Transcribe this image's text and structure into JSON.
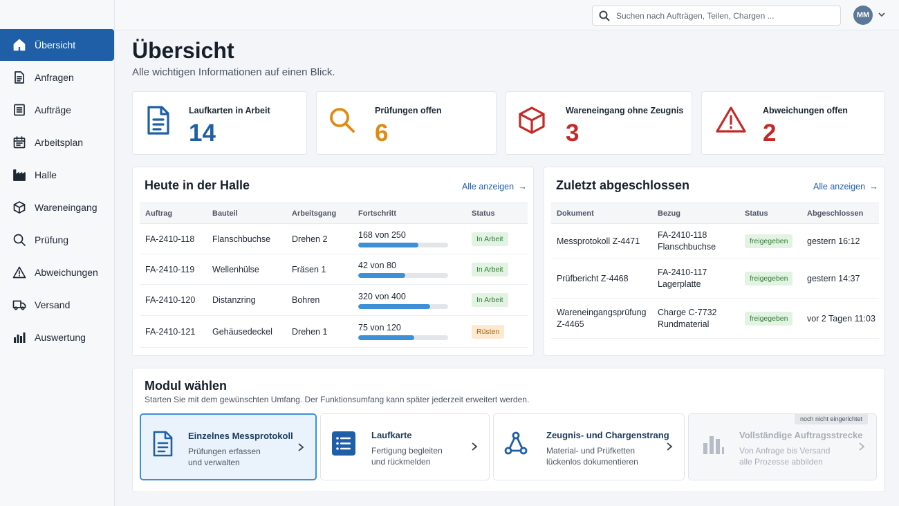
{
  "search": {
    "placeholder": "Suchen nach Aufträgen, Teilen, Chargen ..."
  },
  "user": {
    "initials": "MM"
  },
  "sidebar": {
    "items": [
      {
        "label": "Übersicht",
        "icon": "home-icon"
      },
      {
        "label": "Anfragen",
        "icon": "document-icon"
      },
      {
        "label": "Aufträge",
        "icon": "list-icon"
      },
      {
        "label": "Arbeitsplan",
        "icon": "calendar-icon"
      },
      {
        "label": "Halle",
        "icon": "factory-icon"
      },
      {
        "label": "Wareneingang",
        "icon": "box-icon"
      },
      {
        "label": "Prüfung",
        "icon": "search-icon"
      },
      {
        "label": "Abweichungen",
        "icon": "warning-icon"
      },
      {
        "label": "Versand",
        "icon": "truck-icon"
      },
      {
        "label": "Auswertung",
        "icon": "bar-chart-icon"
      }
    ]
  },
  "header": {
    "title": "Übersicht",
    "subtitle": "Alle wichtigen Informationen auf einen Blick."
  },
  "kpis": [
    {
      "label": "Laufkarten in Arbeit",
      "value": "14",
      "icon": "document-icon",
      "color": "#1e5fa8"
    },
    {
      "label": "Prüfungen offen",
      "value": "6",
      "icon": "search-icon",
      "color": "#e08a12"
    },
    {
      "label": "Wareneingang ohne Zeugnis",
      "value": "3",
      "icon": "box-icon",
      "color": "#c62828"
    },
    {
      "label": "Abweichungen offen",
      "value": "2",
      "icon": "warning-icon",
      "color": "#c62828"
    }
  ],
  "halle": {
    "title": "Heute in der Halle",
    "link": "Alle anzeigen",
    "columns": [
      "Auftrag",
      "Bauteil",
      "Arbeitsgang",
      "Fortschritt",
      "Status"
    ],
    "rows": [
      {
        "auftrag": "FA-2410-118",
        "bauteil": "Flanschbuchse",
        "arbeitsgang": "Drehen 2",
        "progress_text": "168 von 250",
        "progress": 0.672,
        "status": "In Arbeit"
      },
      {
        "auftrag": "FA-2410-119",
        "bauteil": "Wellenhülse",
        "arbeitsgang": "Fräsen 1",
        "progress_text": "42 von 80",
        "progress": 0.525,
        "status": "In Arbeit"
      },
      {
        "auftrag": "FA-2410-120",
        "bauteil": "Distanzring",
        "arbeitsgang": "Bohren",
        "progress_text": "320 von 400",
        "progress": 0.8,
        "status": "In Arbeit"
      },
      {
        "auftrag": "FA-2410-121",
        "bauteil": "Gehäusedeckel",
        "arbeitsgang": "Drehen 1",
        "progress_text": "75 von 120",
        "progress": 0.625,
        "status": "Rüsten"
      }
    ]
  },
  "done": {
    "title": "Zuletzt abgeschlossen",
    "link": "Alle anzeigen",
    "columns": [
      "Dokument",
      "Bezug",
      "Status",
      "Abgeschlossen"
    ],
    "rows": [
      {
        "dok1": "Messprotokoll Z-4471",
        "dok2": "",
        "bez1": "FA-2410-118",
        "bez2": "Flanschbuchse",
        "status": "freigegeben",
        "time": "gestern 16:12"
      },
      {
        "dok1": "Prüfbericht Z-4468",
        "dok2": "",
        "bez1": "FA-2410-117",
        "bez2": "Lagerplatte",
        "status": "freigegeben",
        "time": "gestern 14:37"
      },
      {
        "dok1": "Wareneingangsprüfung",
        "dok2": "Z-4465",
        "bez1": "Charge C-7732",
        "bez2": "Rundmaterial",
        "status": "freigegeben",
        "time": "vor 2 Tagen 11:03"
      }
    ]
  },
  "modules": {
    "title": "Modul wählen",
    "subtitle": "Starten Sie mit dem gewünschten Umfang. Der Funktionsumfang kann später jederzeit erweitert werden.",
    "items": [
      {
        "name": "Einzelnes Messprotokoll",
        "desc1": "Prüfungen erfassen",
        "desc2": "und verwalten",
        "icon": "document-icon"
      },
      {
        "name": "Laufkarte",
        "desc1": "Fertigung begleiten",
        "desc2": "und rückmelden",
        "icon": "list-icon"
      },
      {
        "name": "Zeugnis- und Chargenstrang",
        "desc1": "Material- und Prüfketten",
        "desc2": "lückenlos dokumentieren",
        "icon": "network-icon"
      },
      {
        "name": "Vollständige Auftragsstrecke",
        "desc1": "Von Anfrage bis Versand",
        "desc2": "alle Prozesse abbilden",
        "icon": "bar-chart-icon",
        "badge": "noch nicht eingerichtet"
      }
    ]
  }
}
